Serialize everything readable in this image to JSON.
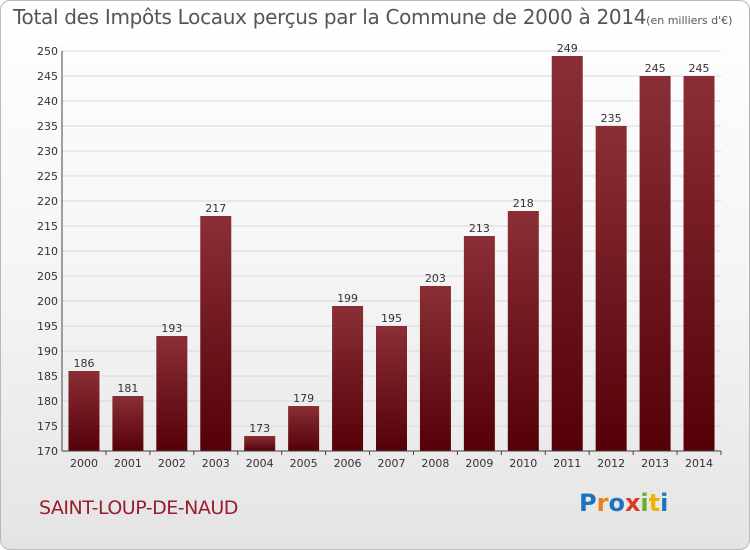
{
  "title": "Total des Impôts Locaux perçus par la Commune de 2000 à 2014",
  "unit": "(en milliers d'€)",
  "commune": "SAINT-LOUP-DE-NAUD",
  "logo": {
    "text": "Proxiti",
    "colors": [
      "#1e73be",
      "#e8801c",
      "#1e73be",
      "#d93a2b",
      "#6aae23",
      "#f0b400",
      "#1e73be"
    ]
  },
  "colors": {
    "bar_top": "#8a2f36",
    "bar_bottom": "#550007",
    "grid": "#d9d9d9",
    "axis": "#444444"
  },
  "chart_data": {
    "type": "bar",
    "categories": [
      "2000",
      "2001",
      "2002",
      "2003",
      "2004",
      "2005",
      "2006",
      "2007",
      "2008",
      "2009",
      "2010",
      "2011",
      "2012",
      "2013",
      "2014"
    ],
    "values": [
      186,
      181,
      193,
      217,
      173,
      179,
      199,
      195,
      203,
      213,
      218,
      249,
      235,
      245,
      245
    ],
    "ylim": [
      170,
      250
    ],
    "yticks": [
      170,
      175,
      180,
      185,
      190,
      195,
      200,
      205,
      210,
      215,
      220,
      225,
      230,
      235,
      240,
      245,
      250
    ],
    "grid": true,
    "xlabel": "",
    "ylabel": ""
  }
}
